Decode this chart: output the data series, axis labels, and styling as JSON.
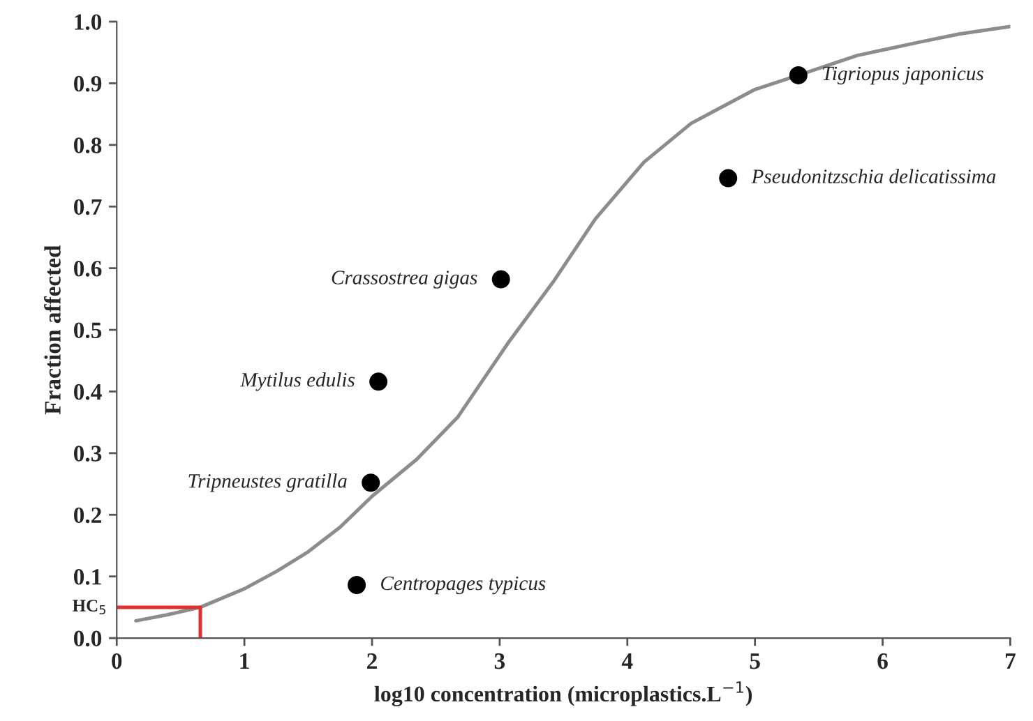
{
  "chart_data": {
    "type": "scatter",
    "xlabel": "log10 concentration (microplastics.L$^{−1}$)",
    "ylabel": "Fraction affected",
    "xlim": [
      0,
      7
    ],
    "ylim": [
      0,
      1.0
    ],
    "xticks": [
      0,
      1,
      2,
      3,
      4,
      5,
      6,
      7
    ],
    "yticks": [
      {
        "value": 0,
        "label": "0.0"
      },
      0.1,
      0.2,
      0.3,
      0.4,
      0.5,
      0.6,
      0.7,
      0.8,
      0.9,
      {
        "value": 1,
        "label": "1.0"
      }
    ],
    "grid": false,
    "legend": false,
    "series": [
      {
        "type": "line",
        "color": "#8c8c8c",
        "marker": "none",
        "line_style": "solid",
        "x": [
          0.15,
          0.4,
          0.655,
          1.0,
          1.25,
          1.5,
          1.75,
          2.0,
          2.35,
          2.67,
          3.07,
          3.42,
          3.75,
          4.13,
          4.5,
          5.0,
          5.34,
          5.8,
          6.27,
          6.6,
          7.0
        ],
        "values": [
          0.028,
          0.038,
          0.05,
          0.08,
          0.108,
          0.14,
          0.18,
          0.23,
          0.29,
          0.358,
          0.48,
          0.578,
          0.68,
          0.772,
          0.835,
          0.89,
          0.913,
          0.945,
          0.966,
          0.98,
          0.992
        ]
      },
      {
        "type": "line",
        "color": "#e03030",
        "marker": "none",
        "line_style": "solid",
        "x": [
          0,
          0.655,
          0.655
        ],
        "values": [
          0.05,
          0.05,
          0
        ]
      },
      {
        "color": "#000000",
        "marker": "circle",
        "x": [
          5.34,
          4.79,
          3.01,
          2.05,
          1.99,
          1.88
        ],
        "values": [
          0.913,
          0.746,
          0.582,
          0.416,
          0.252,
          0.086
        ]
      }
    ],
    "annotations": [
      {
        "text": "HC$_{5}$",
        "x": 0,
        "y": 0.05
      },
      {
        "text": "Tigriopus japonicus",
        "x": 5.34,
        "y": 0.913
      },
      {
        "text": "Pseudonitzschia delicatissima",
        "x": 4.79,
        "y": 0.746
      },
      {
        "text": "Crassostrea gigas",
        "x": 3.01,
        "y": 0.582
      },
      {
        "text": "Mytilus edulis",
        "x": 2.05,
        "y": 0.416
      },
      {
        "text": "Tripneustes gratilla",
        "x": 1.99,
        "y": 0.252
      },
      {
        "text": "Centropages typicus",
        "x": 1.88,
        "y": 0.086
      }
    ]
  }
}
